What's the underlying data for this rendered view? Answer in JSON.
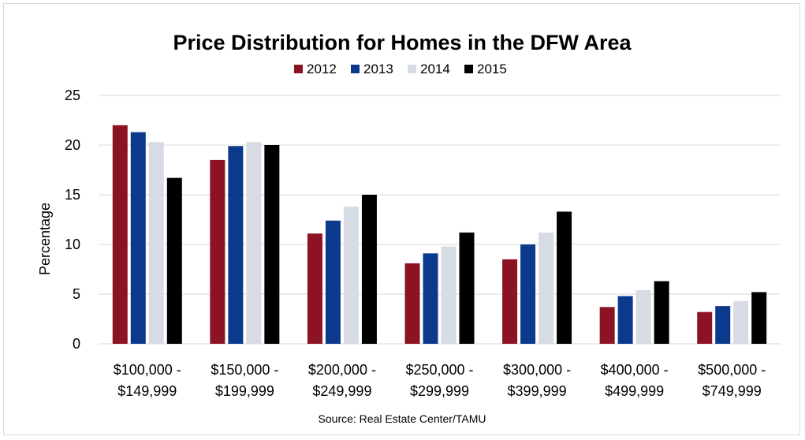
{
  "chart_data": {
    "type": "bar",
    "title": "Price Distribution for Homes in the DFW Area",
    "ylabel": "Percentage",
    "xlabel": "",
    "ylim": [
      0,
      25
    ],
    "yticks": [
      "0",
      "5",
      "10",
      "15",
      "20",
      "25"
    ],
    "ytick_values": [
      0,
      5,
      10,
      15,
      20,
      25
    ],
    "grid": true,
    "legend_position": "top-center",
    "categories": [
      [
        "$100,000 -",
        "$149,999"
      ],
      [
        "$150,000 -",
        "$199,999"
      ],
      [
        "$200,000 -",
        "$249,999"
      ],
      [
        "$250,000 -",
        "$299,999"
      ],
      [
        "$300,000 -",
        "$399,999"
      ],
      [
        "$400,000 -",
        "$499,999"
      ],
      [
        "$500,000 -",
        "$749,999"
      ]
    ],
    "series": [
      {
        "name": "2012",
        "color": "#8b1323",
        "values": [
          22.0,
          18.5,
          11.1,
          8.1,
          8.5,
          3.7,
          3.2
        ]
      },
      {
        "name": "2013",
        "color": "#0b3a8c",
        "values": [
          21.3,
          19.9,
          12.4,
          9.1,
          10.0,
          4.8,
          3.8
        ]
      },
      {
        "name": "2014",
        "color": "#d7dbe4",
        "values": [
          20.3,
          20.3,
          13.8,
          9.8,
          11.2,
          5.4,
          4.3
        ]
      },
      {
        "name": "2015",
        "color": "#000000",
        "values": [
          16.7,
          20.0,
          15.0,
          11.2,
          13.3,
          6.3,
          5.2
        ]
      }
    ],
    "source": "Source: Real Estate Center/TAMU",
    "gridline_color": "#d9d9d9"
  }
}
